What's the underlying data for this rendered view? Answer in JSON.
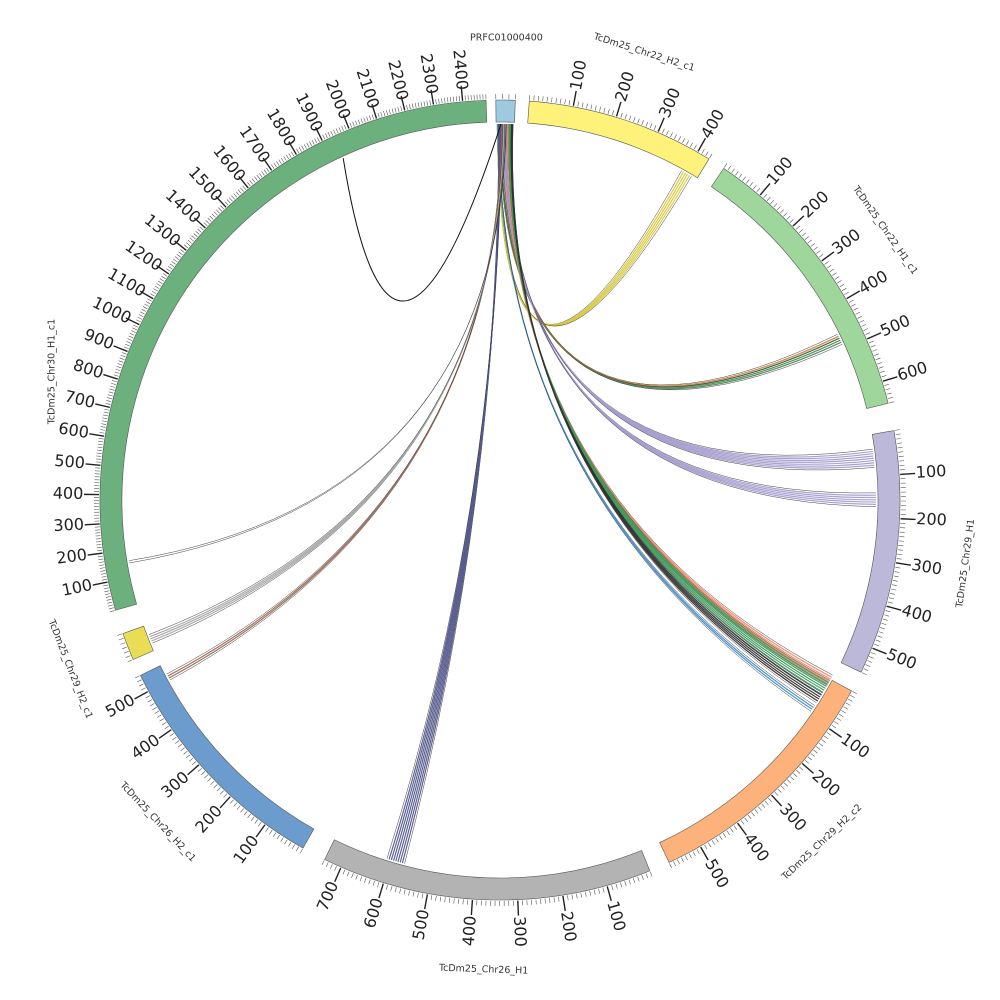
{
  "chart_data": {
    "type": "chord",
    "segments": [
      {
        "id": "prfc",
        "label": "PRFC01000400",
        "length": 30,
        "color": "#9ecae1",
        "tick_labels": []
      },
      {
        "id": "chr22h2",
        "label": "TcDm25_Chr22_H2_c1",
        "length": 430,
        "color": "#fff27a",
        "tick_labels": [
          "100",
          "200",
          "300",
          "400"
        ]
      },
      {
        "id": "chr22h1",
        "label": "TcDm25_Chr22_H1_c1",
        "length": 650,
        "color": "#9ed69b",
        "tick_labels": [
          "100",
          "200",
          "300",
          "400",
          "500",
          "600"
        ]
      },
      {
        "id": "chr29h1",
        "label": "TcDm25_Chr29_H1",
        "length": 560,
        "color": "#bcb8da",
        "tick_labels": [
          "100",
          "200",
          "300",
          "400",
          "500"
        ]
      },
      {
        "id": "chr29h2c2",
        "label": "TcDm25_Chr29_H2_c2",
        "length": 580,
        "color": "#fdb27c",
        "tick_labels": [
          "100",
          "200",
          "300",
          "400",
          "500"
        ]
      },
      {
        "id": "chr26h1",
        "label": "TcDm25_Chr26_H1",
        "length": 740,
        "color": "#b3b3b3",
        "tick_labels": [
          "100",
          "200",
          "300",
          "400",
          "500",
          "600",
          "700"
        ]
      },
      {
        "id": "chr26h2",
        "label": "TcDm25_Chr26_H2_c1",
        "length": 540,
        "color": "#6b9ccd",
        "tick_labels": [
          "100",
          "200",
          "300",
          "400",
          "500"
        ]
      },
      {
        "id": "chr29h2c1",
        "label": "TcDm25_Chr29_H2_c1",
        "length": 60,
        "color": "#e8dd55",
        "tick_labels": []
      },
      {
        "id": "chr30",
        "label": "TcDm25_Chr30_H1_c1",
        "length": 2480,
        "color": "#6bb07d",
        "tick_labels": [
          "100",
          "200",
          "300",
          "400",
          "500",
          "600",
          "700",
          "800",
          "900",
          "1000",
          "1100",
          "1200",
          "1300",
          "1400",
          "1500",
          "1600",
          "1700",
          "1800",
          "1900",
          "2000",
          "2100",
          "2200",
          "2300",
          "2400"
        ]
      }
    ],
    "links": [
      {
        "from": "prfc",
        "to": "chr22h2",
        "at": 405,
        "color": "#d8c83a",
        "width": 6
      },
      {
        "from": "prfc",
        "to": "chr22h1",
        "at": 480,
        "color": "#4e8a55",
        "width": 5
      },
      {
        "from": "prfc",
        "to": "chr22h1",
        "at": 470,
        "color": "#e2884b",
        "width": 3
      },
      {
        "from": "prfc",
        "to": "chr29h1",
        "at": 60,
        "color": "#a79dcf",
        "width": 9
      },
      {
        "from": "prfc",
        "to": "chr29h1",
        "at": 160,
        "color": "#a79dcf",
        "width": 7
      },
      {
        "from": "prfc",
        "to": "chr29h2c2",
        "at": 5,
        "color": "#f08a6a",
        "width": 6
      },
      {
        "from": "prfc",
        "to": "chr29h2c2",
        "at": 25,
        "color": "#3f9a5c",
        "width": 8
      },
      {
        "from": "prfc",
        "to": "chr29h2c2",
        "at": 55,
        "color": "#333333",
        "width": 6
      },
      {
        "from": "prfc",
        "to": "chr29h2c2",
        "at": 85,
        "color": "#4a8ec9",
        "width": 4
      },
      {
        "from": "prfc",
        "to": "chr26h1",
        "at": 590,
        "color": "#555a8c",
        "width": 9
      },
      {
        "from": "prfc",
        "to": "chr26h2",
        "at": 510,
        "color": "#9a6f5a",
        "width": 4
      },
      {
        "from": "prfc",
        "to": "chr29h2c1",
        "at": 30,
        "color": "#a8a8a8",
        "width": 5
      },
      {
        "from": "prfc",
        "to": "chr30",
        "at": 160,
        "color": "#6aa2c9",
        "width": 2
      },
      {
        "from": "chr30",
        "to": "chr30",
        "at": 1940,
        "color": "#111111",
        "width": 1
      }
    ]
  }
}
